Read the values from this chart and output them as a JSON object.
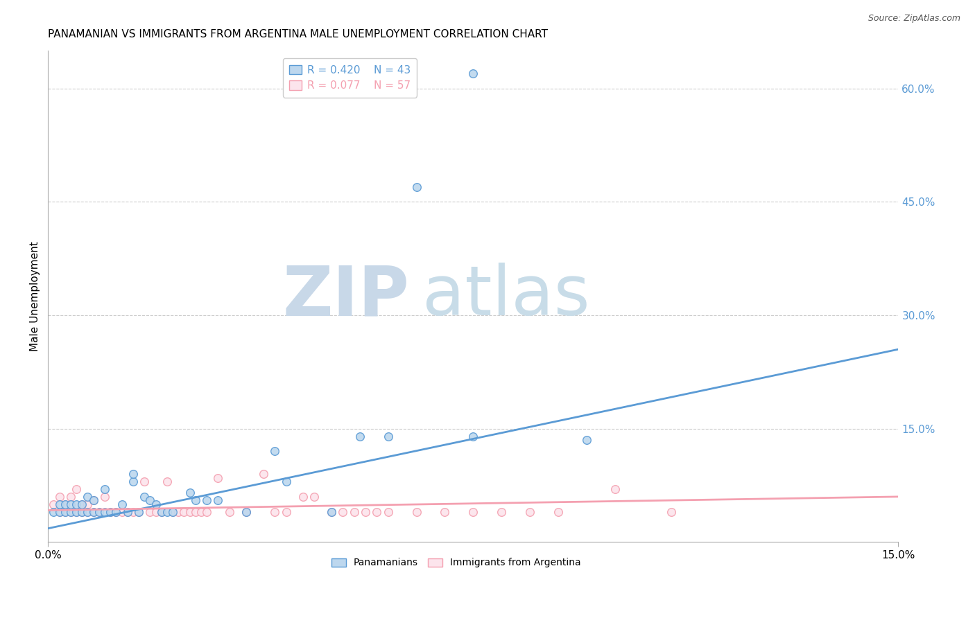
{
  "title": "PANAMANIAN VS IMMIGRANTS FROM ARGENTINA MALE UNEMPLOYMENT CORRELATION CHART",
  "source": "Source: ZipAtlas.com",
  "ylabel": "Male Unemployment",
  "xlim": [
    0.0,
    0.15
  ],
  "ylim": [
    0.0,
    0.65
  ],
  "watermark_zip": "ZIP",
  "watermark_atlas": "atlas",
  "scatter_blue": [
    [
      0.001,
      0.04
    ],
    [
      0.002,
      0.05
    ],
    [
      0.002,
      0.04
    ],
    [
      0.003,
      0.04
    ],
    [
      0.003,
      0.05
    ],
    [
      0.004,
      0.04
    ],
    [
      0.004,
      0.05
    ],
    [
      0.005,
      0.04
    ],
    [
      0.005,
      0.05
    ],
    [
      0.006,
      0.04
    ],
    [
      0.006,
      0.05
    ],
    [
      0.007,
      0.04
    ],
    [
      0.007,
      0.06
    ],
    [
      0.008,
      0.04
    ],
    [
      0.008,
      0.055
    ],
    [
      0.009,
      0.04
    ],
    [
      0.01,
      0.04
    ],
    [
      0.01,
      0.07
    ],
    [
      0.011,
      0.04
    ],
    [
      0.012,
      0.04
    ],
    [
      0.013,
      0.05
    ],
    [
      0.014,
      0.04
    ],
    [
      0.015,
      0.08
    ],
    [
      0.015,
      0.09
    ],
    [
      0.016,
      0.04
    ],
    [
      0.017,
      0.06
    ],
    [
      0.018,
      0.055
    ],
    [
      0.019,
      0.05
    ],
    [
      0.02,
      0.04
    ],
    [
      0.021,
      0.04
    ],
    [
      0.022,
      0.04
    ],
    [
      0.025,
      0.065
    ],
    [
      0.026,
      0.055
    ],
    [
      0.028,
      0.055
    ],
    [
      0.03,
      0.055
    ],
    [
      0.035,
      0.04
    ],
    [
      0.04,
      0.12
    ],
    [
      0.042,
      0.08
    ],
    [
      0.05,
      0.04
    ],
    [
      0.055,
      0.14
    ],
    [
      0.06,
      0.14
    ],
    [
      0.075,
      0.14
    ],
    [
      0.095,
      0.135
    ]
  ],
  "scatter_pink": [
    [
      0.001,
      0.05
    ],
    [
      0.002,
      0.04
    ],
    [
      0.002,
      0.06
    ],
    [
      0.003,
      0.05
    ],
    [
      0.003,
      0.04
    ],
    [
      0.004,
      0.04
    ],
    [
      0.004,
      0.06
    ],
    [
      0.005,
      0.04
    ],
    [
      0.005,
      0.07
    ],
    [
      0.006,
      0.04
    ],
    [
      0.006,
      0.05
    ],
    [
      0.007,
      0.04
    ],
    [
      0.007,
      0.05
    ],
    [
      0.008,
      0.04
    ],
    [
      0.008,
      0.055
    ],
    [
      0.009,
      0.04
    ],
    [
      0.01,
      0.06
    ],
    [
      0.011,
      0.04
    ],
    [
      0.012,
      0.04
    ],
    [
      0.013,
      0.04
    ],
    [
      0.014,
      0.04
    ],
    [
      0.015,
      0.04
    ],
    [
      0.016,
      0.04
    ],
    [
      0.017,
      0.08
    ],
    [
      0.018,
      0.04
    ],
    [
      0.019,
      0.04
    ],
    [
      0.02,
      0.04
    ],
    [
      0.021,
      0.08
    ],
    [
      0.022,
      0.04
    ],
    [
      0.023,
      0.04
    ],
    [
      0.024,
      0.04
    ],
    [
      0.025,
      0.04
    ],
    [
      0.026,
      0.04
    ],
    [
      0.027,
      0.04
    ],
    [
      0.028,
      0.04
    ],
    [
      0.03,
      0.085
    ],
    [
      0.032,
      0.04
    ],
    [
      0.035,
      0.04
    ],
    [
      0.038,
      0.09
    ],
    [
      0.04,
      0.04
    ],
    [
      0.042,
      0.04
    ],
    [
      0.045,
      0.06
    ],
    [
      0.047,
      0.06
    ],
    [
      0.05,
      0.04
    ],
    [
      0.052,
      0.04
    ],
    [
      0.054,
      0.04
    ],
    [
      0.056,
      0.04
    ],
    [
      0.058,
      0.04
    ],
    [
      0.06,
      0.04
    ],
    [
      0.065,
      0.04
    ],
    [
      0.07,
      0.04
    ],
    [
      0.075,
      0.04
    ],
    [
      0.08,
      0.04
    ],
    [
      0.085,
      0.04
    ],
    [
      0.09,
      0.04
    ],
    [
      0.1,
      0.07
    ],
    [
      0.11,
      0.04
    ]
  ],
  "blue_outlier1": [
    0.075,
    0.62
  ],
  "blue_outlier2": [
    0.065,
    0.47
  ],
  "blue_line_x": [
    0.0,
    0.15
  ],
  "blue_line_y": [
    0.018,
    0.255
  ],
  "pink_line_x": [
    0.0,
    0.15
  ],
  "pink_line_y": [
    0.042,
    0.06
  ],
  "title_fontsize": 11,
  "source_fontsize": 9,
  "ylabel_fontsize": 11,
  "tick_fontsize": 11,
  "legend_fontsize": 11,
  "background_color": "#ffffff",
  "scatter_size": 70,
  "blue_color": "#5b9bd5",
  "blue_face": "#bdd7ee",
  "pink_color": "#f4a0b0",
  "pink_face": "#fce4ec",
  "grid_color": "#cccccc",
  "axis_color": "#aaaaaa",
  "right_tick_color": "#5b9bd5",
  "r_label1": "R = 0.420",
  "n_label1": "N = 43",
  "r_label2": "R = 0.077",
  "n_label2": "N = 57",
  "legend_bottom": [
    "Panamanians",
    "Immigrants from Argentina"
  ]
}
